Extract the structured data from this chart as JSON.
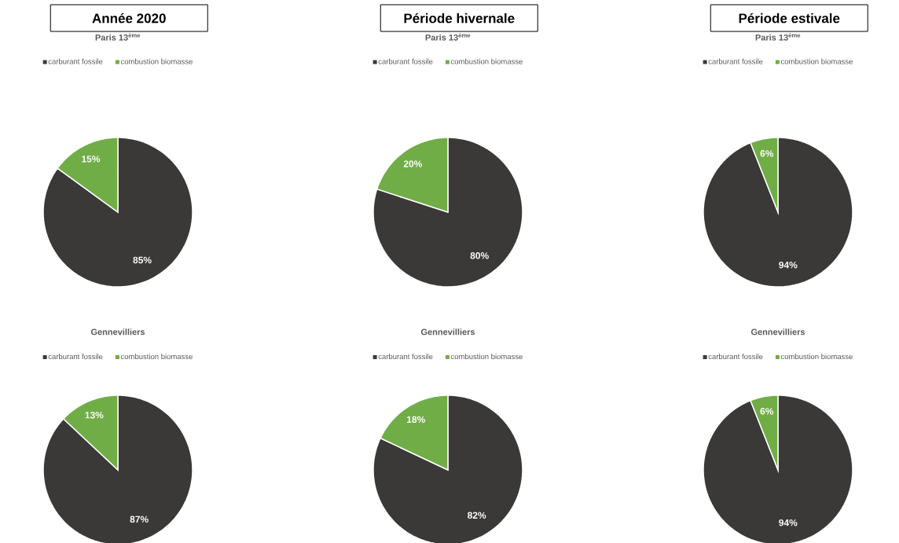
{
  "chart_data": [
    {
      "type": "pie",
      "annotations": [
        "Année 2020"
      ],
      "title": "Paris 13$^{ème}$",
      "categories": [
        "carburant fossile",
        "combustion biomasse"
      ],
      "values": [
        85,
        15
      ],
      "colors": [
        "#3b3838",
        "#70ad47"
      ],
      "value_labels": [
        "85%",
        "15%"
      ],
      "legend": "top"
    },
    {
      "type": "pie",
      "annotations": [
        "Période hivernale"
      ],
      "title": "Paris 13$^{ème}$",
      "categories": [
        "carburant fossile",
        "combustion biomasse"
      ],
      "values": [
        80,
        20
      ],
      "colors": [
        "#3b3838",
        "#70ad47"
      ],
      "value_labels": [
        "80%",
        "20%"
      ],
      "legend": "top"
    },
    {
      "type": "pie",
      "annotations": [
        "Période estivale"
      ],
      "title": "Paris 13$^{ème}$",
      "categories": [
        "carburant fossile",
        "combustion biomasse"
      ],
      "values": [
        94,
        6
      ],
      "colors": [
        "#3b3838",
        "#70ad47"
      ],
      "value_labels": [
        "94%",
        "6%"
      ],
      "legend": "top"
    },
    {
      "type": "pie",
      "title": "Gennevilliers",
      "categories": [
        "carburant fossile",
        "combustion biomasse"
      ],
      "values": [
        87,
        13
      ],
      "colors": [
        "#3b3838",
        "#70ad47"
      ],
      "value_labels": [
        "87%",
        "13%"
      ],
      "legend": "top"
    },
    {
      "type": "pie",
      "title": "Gennevilliers",
      "categories": [
        "carburant fossile",
        "combustion biomasse"
      ],
      "values": [
        82,
        18
      ],
      "colors": [
        "#3b3838",
        "#70ad47"
      ],
      "value_labels": [
        "82%",
        "18%"
      ],
      "legend": "top"
    },
    {
      "type": "pie",
      "title": "Gennevilliers",
      "categories": [
        "carburant fossile",
        "combustion biomasse"
      ],
      "values": [
        94,
        6
      ],
      "colors": [
        "#3b3838",
        "#70ad47"
      ],
      "value_labels": [
        "94%",
        "6%"
      ],
      "legend": "top"
    }
  ]
}
